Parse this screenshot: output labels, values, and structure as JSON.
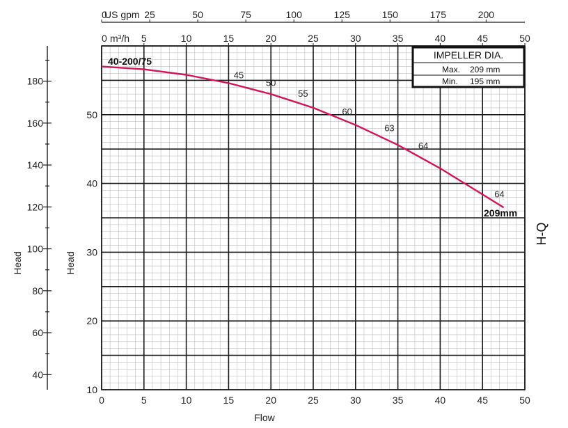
{
  "chart_data": {
    "type": "line",
    "model": "40-200/75",
    "curve_name": "H-Q",
    "xlabel": "Flow",
    "ylabel_left": "Head",
    "ylabel_right": "Head",
    "top_axis_1_label": "US gpm",
    "top_axis_1_ticks": [
      "0",
      "25",
      "50",
      "75",
      "100",
      "125",
      "150",
      "175",
      "200"
    ],
    "top_axis_2_label": "m³/h",
    "top_axis_2_ticks": [
      "0",
      "5",
      "10",
      "15",
      "20",
      "25",
      "30",
      "35",
      "40",
      "45",
      "50"
    ],
    "x_ticks": [
      "0",
      "5",
      "10",
      "15",
      "20",
      "25",
      "30",
      "35",
      "40",
      "45",
      "50"
    ],
    "xlim": [
      0,
      50
    ],
    "ylim": [
      10,
      60
    ],
    "y_ticks": [
      "10",
      "20",
      "30",
      "40",
      "50"
    ],
    "y_outer_ticks": [
      "40",
      "60",
      "80",
      "100",
      "120",
      "140",
      "160",
      "180"
    ],
    "grid": true,
    "series": [
      {
        "name": "209mm",
        "x": [
          0,
          5,
          10,
          15,
          20,
          25,
          30,
          35,
          40,
          45,
          47.5
        ],
        "y": [
          57.0,
          56.6,
          55.8,
          54.6,
          53.0,
          51.0,
          48.5,
          45.6,
          42.2,
          38.4,
          36.5
        ]
      }
    ],
    "annotations": [
      {
        "text": "45",
        "x": 16.2,
        "y": 55.3
      },
      {
        "text": "50",
        "x": 20.0,
        "y": 54.2
      },
      {
        "text": "55",
        "x": 23.8,
        "y": 52.6
      },
      {
        "text": "60",
        "x": 29.0,
        "y": 50.0
      },
      {
        "text": "63",
        "x": 34.0,
        "y": 47.6
      },
      {
        "text": "64",
        "x": 38.0,
        "y": 45.0
      },
      {
        "text": "64",
        "x": 47.0,
        "y": 38.0
      }
    ],
    "impeller_box": {
      "title": "IMPELLER DIA.",
      "max_label": "Max.",
      "max_value": "209 mm",
      "min_label": "Min.",
      "min_value": "195 mm"
    }
  }
}
